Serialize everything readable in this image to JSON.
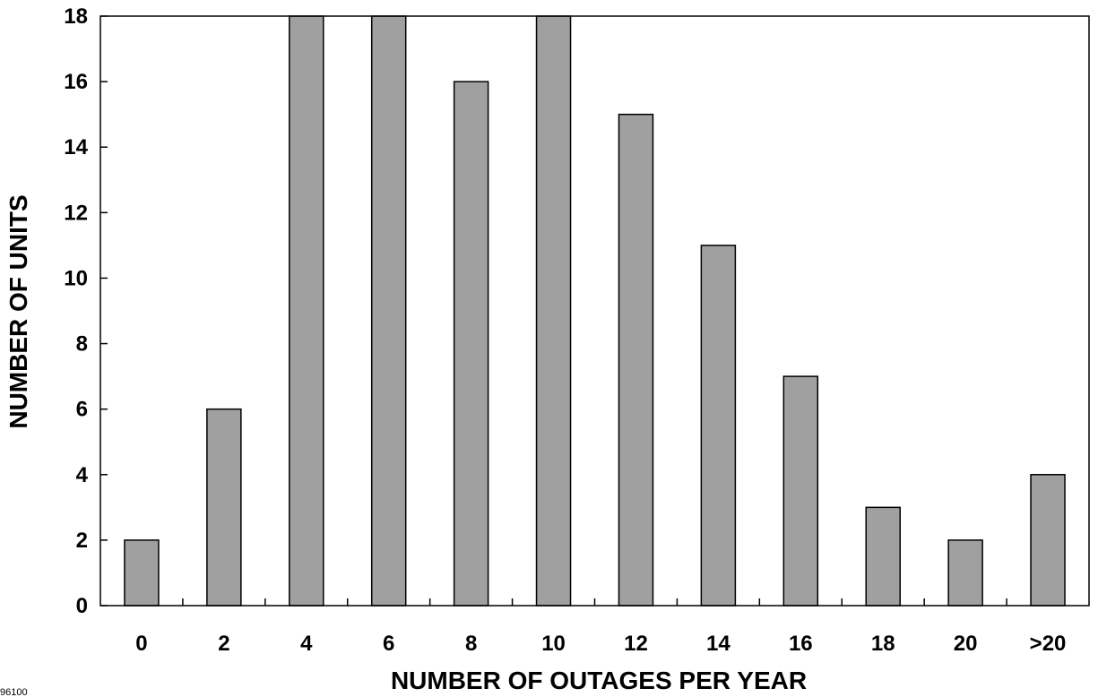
{
  "chart_data": {
    "type": "bar",
    "categories": [
      "0",
      "2",
      "4",
      "6",
      "8",
      "10",
      "12",
      "14",
      "16",
      "18",
      "20",
      ">20"
    ],
    "values": [
      2,
      6,
      18,
      18,
      16,
      18,
      15,
      11,
      7,
      3,
      2,
      4
    ],
    "xlabel": "NUMBER OF OUTAGES PER YEAR",
    "ylabel": "NUMBER OF UNITS",
    "ylim": [
      0,
      18
    ],
    "yticks": [
      0,
      2,
      4,
      6,
      8,
      10,
      12,
      14,
      16,
      18
    ],
    "bar_color": "#a0a0a0",
    "grid": false,
    "legend": "none"
  },
  "footnote": "96100"
}
